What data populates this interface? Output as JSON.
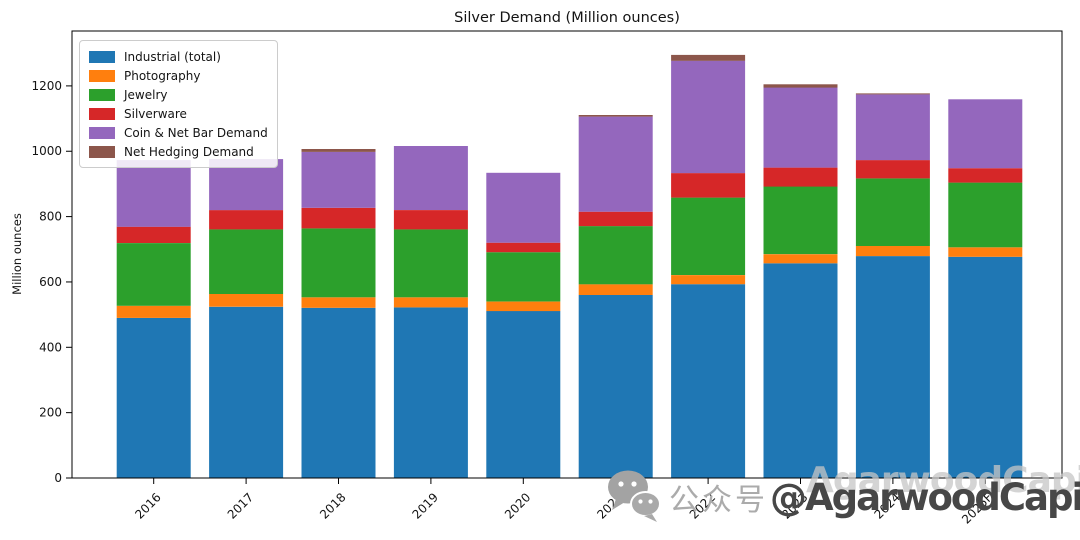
{
  "watermark": {
    "icon": "wechat-icon",
    "prefix": "公众号",
    "handle": "@AgarwoodCapital",
    "ghost": "AgarwoodCapital"
  },
  "chart_data": {
    "type": "bar",
    "stacked": true,
    "title": "Silver Demand (Million ounces)",
    "xlabel": "",
    "ylabel": "Million ounces",
    "categories": [
      "2016",
      "2017",
      "2018",
      "2019",
      "2020",
      "2021",
      "2022",
      "2023",
      "2024",
      "2025F"
    ],
    "series": [
      {
        "name": "Industrial (total)",
        "color": "#1f77b4",
        "values": [
          490,
          524,
          521,
          522,
          511,
          560,
          593,
          657,
          679,
          677
        ]
      },
      {
        "name": "Photography",
        "color": "#ff7f0e",
        "values": [
          37,
          39,
          32,
          31,
          29,
          33,
          28,
          28,
          31,
          29
        ]
      },
      {
        "name": "Jewelry",
        "color": "#2ca02c",
        "values": [
          192,
          198,
          211,
          208,
          151,
          178,
          237,
          207,
          207,
          198
        ]
      },
      {
        "name": "Silverware",
        "color": "#d62728",
        "values": [
          50,
          59,
          63,
          59,
          29,
          44,
          75,
          58,
          56,
          44
        ]
      },
      {
        "name": "Coin & Net Bar Demand",
        "color": "#9467bd",
        "values": [
          204,
          156,
          171,
          196,
          214,
          291,
          344,
          245,
          201,
          211
        ]
      },
      {
        "name": "Net Hedging Demand",
        "color": "#8c564b",
        "values": [
          0,
          0,
          9,
          0,
          0,
          5,
          18,
          10,
          3,
          0
        ]
      }
    ],
    "totals": [
      973,
      976,
      1007,
      1016,
      934,
      1111,
      1295,
      1205,
      1177,
      1159
    ],
    "yticks": [
      0,
      200,
      400,
      600,
      800,
      1000,
      1200
    ],
    "ylim": [
      0,
      1368
    ],
    "grid": false,
    "legend_position": "upper left",
    "x_tick_rotation": 45,
    "axis_color": "#000000"
  }
}
